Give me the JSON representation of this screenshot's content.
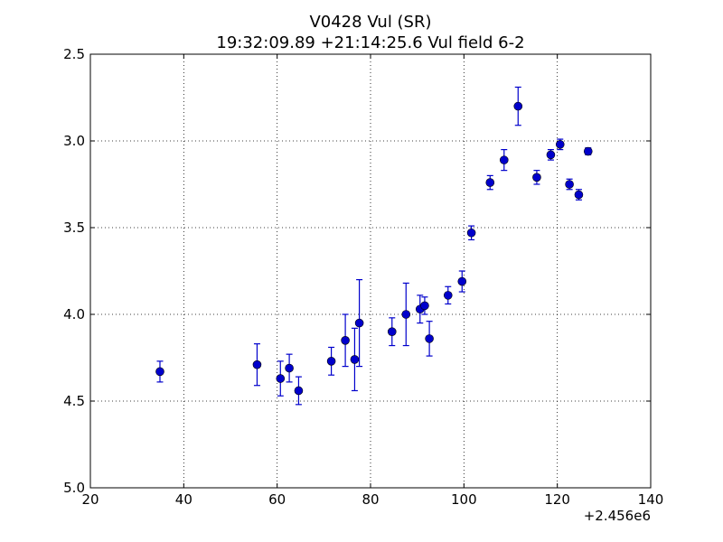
{
  "chart_data": {
    "type": "scatter",
    "title": "V0428 Vul (SR)",
    "subtitle": "19:32:09.89 +21:14:25.6 Vul field 6-2",
    "xlabel": "",
    "ylabel": "",
    "x_offset_label": "+2.456e6",
    "xlim": [
      20,
      140
    ],
    "ylim": [
      2.5,
      5.0
    ],
    "y_inverted": true,
    "grid": true,
    "x_ticks": [
      20,
      40,
      60,
      80,
      100,
      120,
      140
    ],
    "x_tick_labels": [
      "20",
      "40",
      "60",
      "80",
      "100",
      "120",
      "140"
    ],
    "y_ticks": [
      2.5,
      3.0,
      3.5,
      4.0,
      4.5,
      5.0
    ],
    "y_tick_labels": [
      "2.5",
      "3.0",
      "3.5",
      "4.0",
      "4.5",
      "5.0"
    ],
    "colors": {
      "marker": "#0000cc"
    },
    "points": [
      {
        "x": 34.9,
        "y": 4.33,
        "err": 0.06
      },
      {
        "x": 55.7,
        "y": 4.29,
        "err": 0.12
      },
      {
        "x": 60.7,
        "y": 4.37,
        "err": 0.1
      },
      {
        "x": 62.6,
        "y": 4.31,
        "err": 0.08
      },
      {
        "x": 64.6,
        "y": 4.44,
        "err": 0.08
      },
      {
        "x": 71.6,
        "y": 4.27,
        "err": 0.08
      },
      {
        "x": 74.6,
        "y": 4.15,
        "err": 0.15
      },
      {
        "x": 76.6,
        "y": 4.26,
        "err": 0.18
      },
      {
        "x": 77.6,
        "y": 4.05,
        "err": 0.25
      },
      {
        "x": 84.6,
        "y": 4.1,
        "err": 0.08
      },
      {
        "x": 87.6,
        "y": 4.0,
        "err": 0.18
      },
      {
        "x": 90.6,
        "y": 3.97,
        "err": 0.08
      },
      {
        "x": 91.6,
        "y": 3.95,
        "err": 0.05
      },
      {
        "x": 92.6,
        "y": 4.14,
        "err": 0.1
      },
      {
        "x": 96.6,
        "y": 3.89,
        "err": 0.05
      },
      {
        "x": 99.6,
        "y": 3.81,
        "err": 0.06
      },
      {
        "x": 101.6,
        "y": 3.53,
        "err": 0.04
      },
      {
        "x": 105.6,
        "y": 3.24,
        "err": 0.04
      },
      {
        "x": 108.6,
        "y": 3.11,
        "err": 0.06
      },
      {
        "x": 111.6,
        "y": 2.8,
        "err": 0.11
      },
      {
        "x": 115.6,
        "y": 3.21,
        "err": 0.04
      },
      {
        "x": 118.6,
        "y": 3.08,
        "err": 0.03
      },
      {
        "x": 120.6,
        "y": 3.02,
        "err": 0.03
      },
      {
        "x": 122.6,
        "y": 3.25,
        "err": 0.03
      },
      {
        "x": 124.6,
        "y": 3.31,
        "err": 0.03
      },
      {
        "x": 126.6,
        "y": 3.06,
        "err": 0.02
      }
    ]
  }
}
